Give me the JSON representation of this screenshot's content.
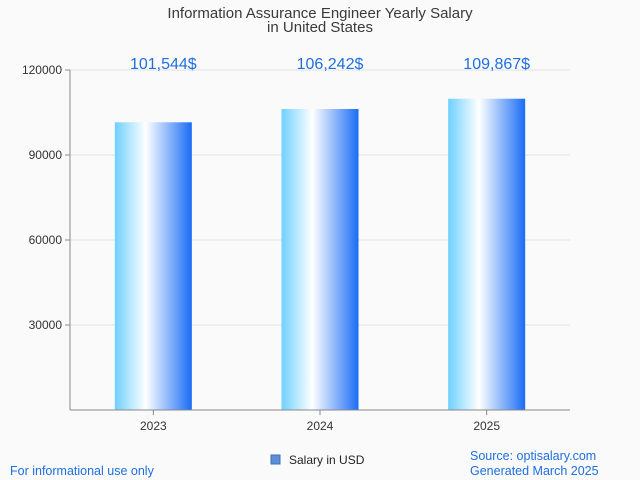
{
  "chart_data": {
    "type": "bar",
    "title_lines": [
      "Information Assurance Engineer Yearly Salary",
      "in United States"
    ],
    "categories": [
      "2023",
      "2024",
      "2025"
    ],
    "series": [
      {
        "name": "Salary in USD",
        "values": [
          101544,
          106242,
          109867
        ],
        "value_labels": [
          "101,544$",
          "106,242$",
          "109,867$"
        ]
      }
    ],
    "y_ticks": [
      30000,
      60000,
      90000,
      120000
    ],
    "y_tick_labels": [
      "30000",
      "60000",
      "90000",
      "120000"
    ],
    "ylim": [
      0,
      120000
    ],
    "grid": true,
    "legend_position": "bottom",
    "colors": {
      "bar_light": "#6fd0ff",
      "bar_mid": "#ffffff",
      "bar_dark": "#1a6cf5",
      "legend_swatch": "#5b8fd6",
      "data_label": "#1f6fe0",
      "footer_text": "#1f6fe0",
      "grid": "#e2e2e2",
      "axis": "#8a8a8a"
    }
  },
  "footer": {
    "left_note": "For informational use only",
    "source": "Source: optisalary.com",
    "generated": "Generated March 2025"
  }
}
